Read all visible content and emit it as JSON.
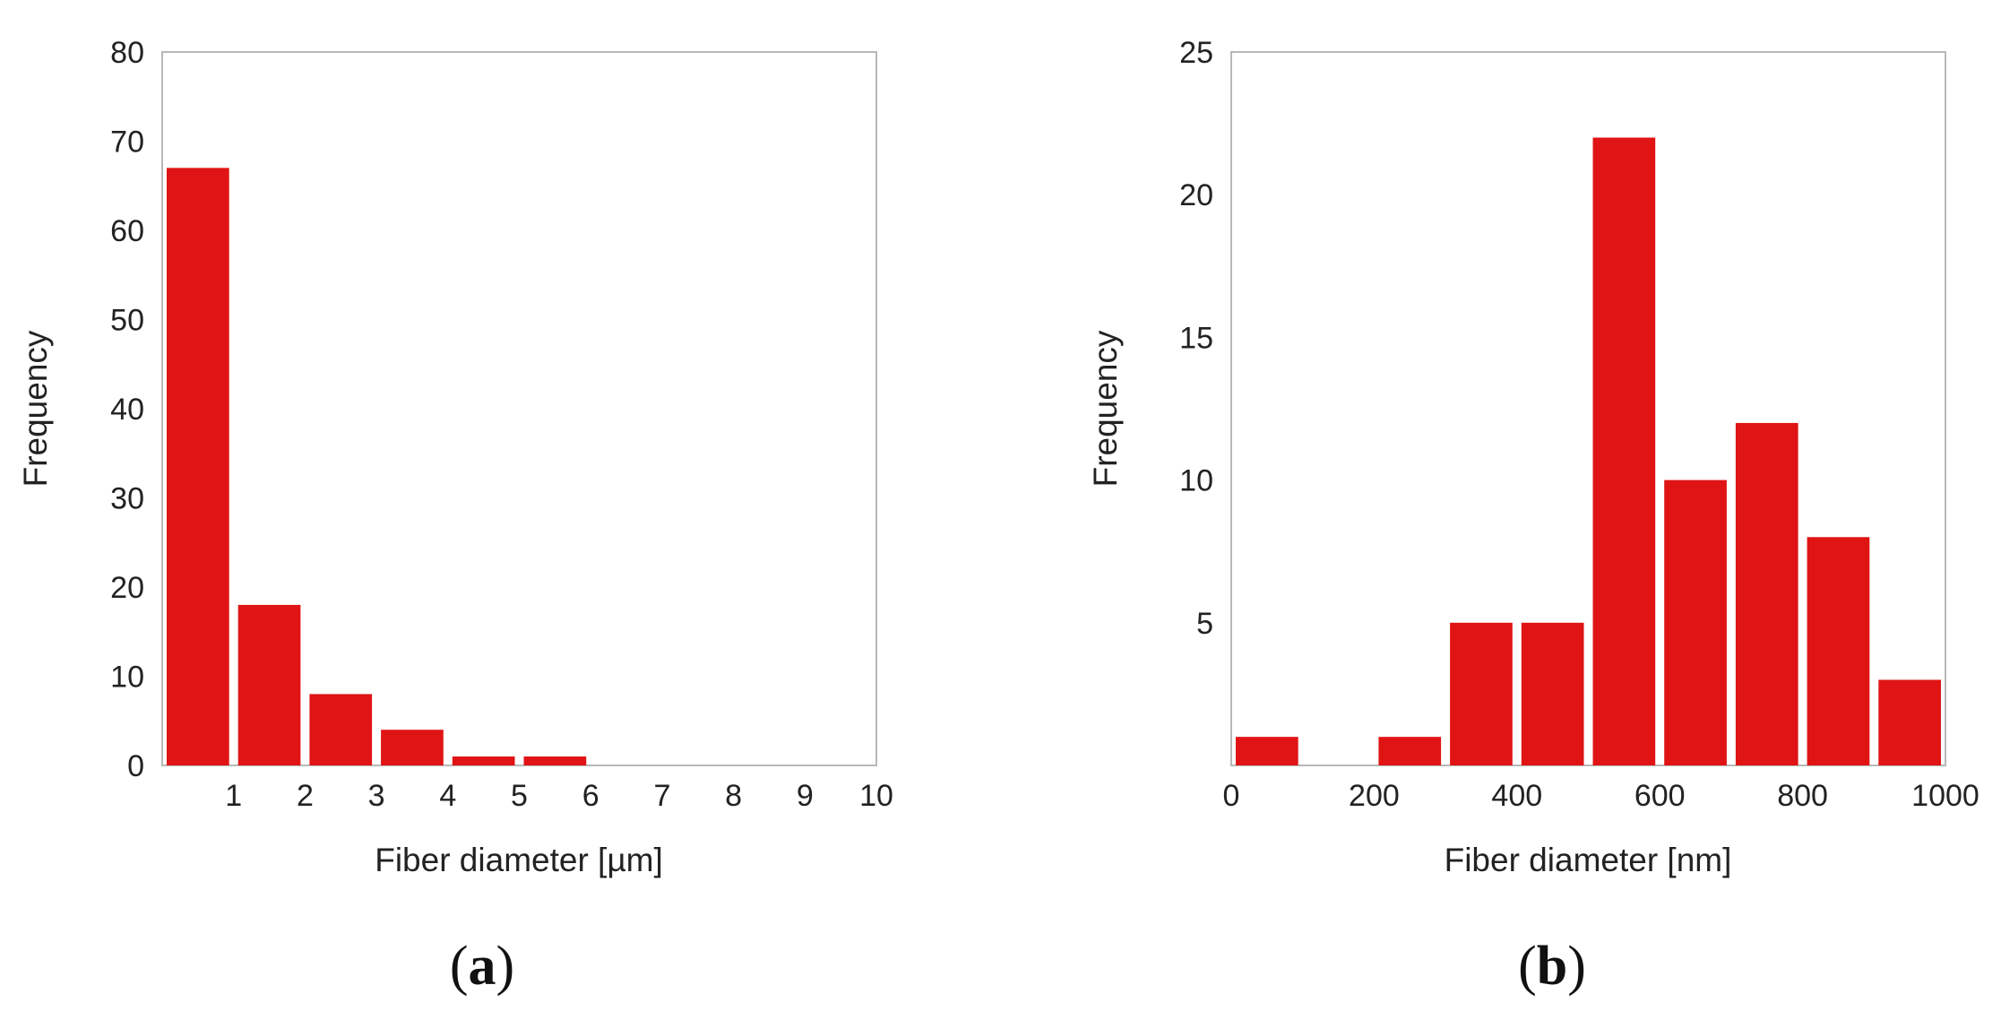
{
  "chart_data": [
    {
      "type": "bar",
      "panel_label": {
        "open": "(",
        "letter": "a",
        "close": ")"
      },
      "xlabel": "Fiber diameter [µm]",
      "ylabel": "Frequency",
      "xlim": [
        0,
        10
      ],
      "ylim": [
        0,
        80
      ],
      "xticks": [
        "1",
        "2",
        "3",
        "4",
        "5",
        "6",
        "7",
        "8",
        "9",
        "10"
      ],
      "yticks": [
        "0",
        "10",
        "20",
        "30",
        "40",
        "50",
        "60",
        "70",
        "80"
      ],
      "bins": [
        {
          "from": 0,
          "to": 1,
          "value": 67
        },
        {
          "from": 1,
          "to": 2,
          "value": 18
        },
        {
          "from": 2,
          "to": 3,
          "value": 8
        },
        {
          "from": 3,
          "to": 4,
          "value": 4
        },
        {
          "from": 4,
          "to": 5,
          "value": 1
        },
        {
          "from": 5,
          "to": 6,
          "value": 1
        }
      ],
      "bar_color": "#e01414",
      "grid": false
    },
    {
      "type": "bar",
      "panel_label": {
        "open": "(",
        "letter": "b",
        "close": ")"
      },
      "xlabel": "Fiber diameter [nm]",
      "ylabel": "Frequency",
      "xlim": [
        0,
        1000
      ],
      "ylim": [
        0,
        25
      ],
      "xticks": [
        "0",
        "200",
        "400",
        "600",
        "800",
        "1000"
      ],
      "yticks": [
        "5",
        "10",
        "15",
        "20",
        "25"
      ],
      "bins": [
        {
          "from": 0,
          "to": 100,
          "value": 1
        },
        {
          "from": 100,
          "to": 200,
          "value": 0
        },
        {
          "from": 200,
          "to": 300,
          "value": 1
        },
        {
          "from": 300,
          "to": 400,
          "value": 5
        },
        {
          "from": 400,
          "to": 500,
          "value": 5
        },
        {
          "from": 500,
          "to": 600,
          "value": 22
        },
        {
          "from": 600,
          "to": 700,
          "value": 10
        },
        {
          "from": 700,
          "to": 800,
          "value": 12
        },
        {
          "from": 800,
          "to": 900,
          "value": 8
        },
        {
          "from": 900,
          "to": 1000,
          "value": 3
        }
      ],
      "bar_color": "#e01414",
      "grid": false
    }
  ]
}
